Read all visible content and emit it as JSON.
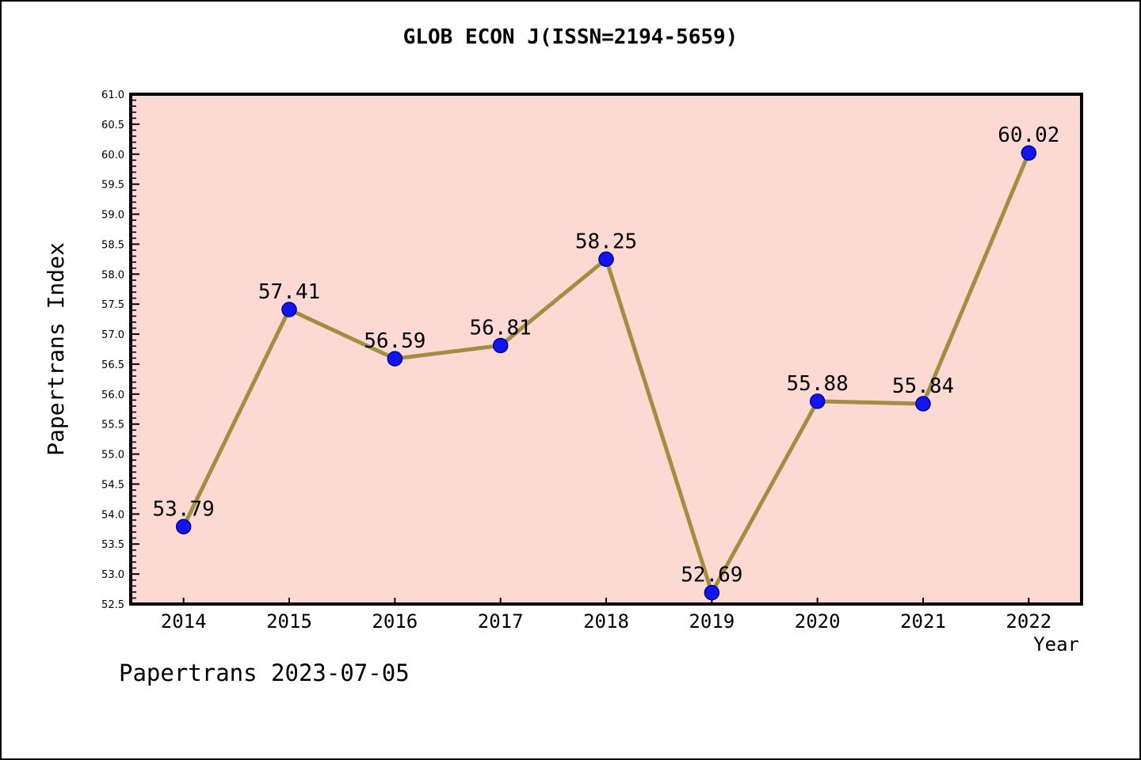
{
  "chart_data": {
    "type": "line",
    "title": "GLOB ECON J(ISSN=2194-5659)",
    "xlabel": "Year",
    "ylabel": "Papertrans Index",
    "categories": [
      "2014",
      "2015",
      "2016",
      "2017",
      "2018",
      "2019",
      "2020",
      "2021",
      "2022"
    ],
    "values": [
      53.79,
      57.41,
      56.59,
      56.81,
      58.25,
      52.69,
      55.88,
      55.84,
      60.02
    ],
    "point_labels": [
      "53.79",
      "57.41",
      "56.59",
      "56.81",
      "58.25",
      "52.69",
      "55.88",
      "55.84",
      "60.02"
    ],
    "ylim": [
      52.5,
      61.0
    ],
    "ytick_major": 0.5,
    "ytick_minor": 0.1,
    "grid": false,
    "legend_position": "none",
    "colors": {
      "line": "#a08f42",
      "marker_fill": "#1414f0",
      "marker_edge": "#000090",
      "plot_background": "#fcd9d3",
      "axis": "#000000",
      "text": "#000000"
    }
  },
  "footer": {
    "text": "Papertrans 2023-07-05"
  }
}
